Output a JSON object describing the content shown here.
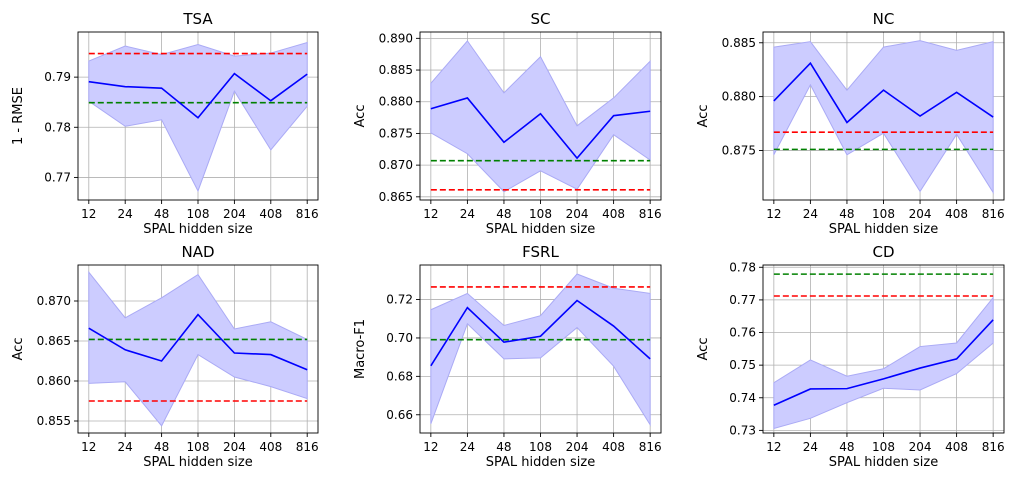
{
  "colors": {
    "mean_line": "#0000ff",
    "band_fill": "#ccccff",
    "band_edge": "#aaaaf5",
    "ref_red": "#ff0000",
    "ref_green": "#008000",
    "grid": "#b0b0b0"
  },
  "chart_data": [
    {
      "type": "line",
      "title": "TSA",
      "xlabel": "SPAL hidden size",
      "ylabel": "1 - RMSE",
      "categories": [
        "12",
        "24",
        "48",
        "108",
        "204",
        "408",
        "816"
      ],
      "ylim": [
        0.7655,
        0.799
      ],
      "yticks": [
        0.77,
        0.78,
        0.79
      ],
      "ytick_labels": [
        "0.77",
        "0.78",
        "0.79"
      ],
      "mean": [
        0.7891,
        0.7881,
        0.7878,
        0.7819,
        0.7907,
        0.7853,
        0.7906
      ],
      "band_upper": [
        0.7932,
        0.7962,
        0.7945,
        0.7965,
        0.7942,
        0.7948,
        0.7969
      ],
      "band_lower": [
        0.7852,
        0.7802,
        0.7815,
        0.7673,
        0.7872,
        0.7755,
        0.7842
      ],
      "reference_lines": [
        {
          "color": "red",
          "value": 0.7947
        },
        {
          "color": "green",
          "value": 0.7849
        }
      ]
    },
    {
      "type": "line",
      "title": "SC",
      "xlabel": "SPAL hidden size",
      "ylabel": "Acc",
      "categories": [
        "12",
        "24",
        "48",
        "108",
        "204",
        "408",
        "816"
      ],
      "ylim": [
        0.8645,
        0.891
      ],
      "yticks": [
        0.865,
        0.87,
        0.875,
        0.88,
        0.885,
        0.89
      ],
      "ytick_labels": [
        "0.865",
        "0.870",
        "0.875",
        "0.880",
        "0.885",
        "0.890"
      ],
      "mean": [
        0.8789,
        0.8806,
        0.8736,
        0.8781,
        0.8711,
        0.8778,
        0.8785
      ],
      "band_upper": [
        0.8829,
        0.8896,
        0.8814,
        0.8871,
        0.8762,
        0.8806,
        0.8864
      ],
      "band_lower": [
        0.8751,
        0.8718,
        0.8658,
        0.8691,
        0.8662,
        0.8748,
        0.8708
      ],
      "reference_lines": [
        {
          "color": "red",
          "value": 0.8661
        },
        {
          "color": "green",
          "value": 0.8707
        }
      ]
    },
    {
      "type": "line",
      "title": "NC",
      "xlabel": "SPAL hidden size",
      "ylabel": "Acc",
      "categories": [
        "12",
        "24",
        "48",
        "108",
        "204",
        "408",
        "816"
      ],
      "ylim": [
        0.8704,
        0.886
      ],
      "yticks": [
        0.875,
        0.88,
        0.885
      ],
      "ytick_labels": [
        "0.875",
        "0.880",
        "0.885"
      ],
      "mean": [
        0.8796,
        0.8831,
        0.8776,
        0.8806,
        0.8782,
        0.8804,
        0.8781
      ],
      "band_upper": [
        0.8846,
        0.8851,
        0.8806,
        0.8846,
        0.8852,
        0.8843,
        0.8851
      ],
      "band_lower": [
        0.8746,
        0.8811,
        0.8746,
        0.8766,
        0.8712,
        0.8765,
        0.8711
      ],
      "reference_lines": [
        {
          "color": "red",
          "value": 0.8767
        },
        {
          "color": "green",
          "value": 0.8751
        }
      ]
    },
    {
      "type": "line",
      "title": "NAD",
      "xlabel": "SPAL hidden size",
      "ylabel": "Acc",
      "categories": [
        "12",
        "24",
        "48",
        "108",
        "204",
        "408",
        "816"
      ],
      "ylim": [
        0.8535,
        0.8745
      ],
      "yticks": [
        0.855,
        0.86,
        0.865,
        0.87
      ],
      "ytick_labels": [
        "0.855",
        "0.860",
        "0.865",
        "0.870"
      ],
      "mean": [
        0.8666,
        0.8639,
        0.8625,
        0.8683,
        0.8635,
        0.8633,
        0.8614
      ],
      "band_upper": [
        0.8736,
        0.8679,
        0.8704,
        0.8733,
        0.8665,
        0.8674,
        0.8652
      ],
      "band_lower": [
        0.8597,
        0.8599,
        0.8544,
        0.8633,
        0.8605,
        0.8593,
        0.8578
      ],
      "reference_lines": [
        {
          "color": "red",
          "value": 0.8575
        },
        {
          "color": "green",
          "value": 0.8652
        }
      ]
    },
    {
      "type": "line",
      "title": "FSRL",
      "xlabel": "SPAL hidden size",
      "ylabel": "Macro-F1",
      "categories": [
        "12",
        "24",
        "48",
        "108",
        "204",
        "408",
        "816"
      ],
      "ylim": [
        0.6505,
        0.738
      ],
      "yticks": [
        0.66,
        0.68,
        0.7,
        0.72
      ],
      "ytick_labels": [
        "0.66",
        "0.68",
        "0.70",
        "0.72"
      ],
      "mean": [
        0.6855,
        0.7158,
        0.6978,
        0.7009,
        0.7195,
        0.7062,
        0.6891
      ],
      "band_upper": [
        0.7147,
        0.7232,
        0.7065,
        0.7116,
        0.7333,
        0.7259,
        0.7232
      ],
      "band_lower": [
        0.6553,
        0.7074,
        0.6891,
        0.6896,
        0.7054,
        0.6853,
        0.6548
      ],
      "reference_lines": [
        {
          "color": "red",
          "value": 0.7266
        },
        {
          "color": "green",
          "value": 0.6991
        }
      ]
    },
    {
      "type": "line",
      "title": "CD",
      "xlabel": "SPAL hidden size",
      "ylabel": "Acc",
      "categories": [
        "12",
        "24",
        "48",
        "108",
        "204",
        "408",
        "816"
      ],
      "ylim": [
        0.7292,
        0.7807
      ],
      "yticks": [
        0.73,
        0.74,
        0.75,
        0.76,
        0.77,
        0.78
      ],
      "ytick_labels": [
        "0.73",
        "0.74",
        "0.75",
        "0.76",
        "0.77",
        "0.78"
      ],
      "mean": [
        0.7377,
        0.7427,
        0.7428,
        0.7458,
        0.7491,
        0.7519,
        0.7639
      ],
      "band_upper": [
        0.7446,
        0.7516,
        0.7466,
        0.7489,
        0.7557,
        0.7568,
        0.7707
      ],
      "band_lower": [
        0.7306,
        0.7337,
        0.7385,
        0.7429,
        0.7424,
        0.7474,
        0.7568
      ],
      "reference_lines": [
        {
          "color": "red",
          "value": 0.7712
        },
        {
          "color": "green",
          "value": 0.7779
        }
      ]
    }
  ]
}
